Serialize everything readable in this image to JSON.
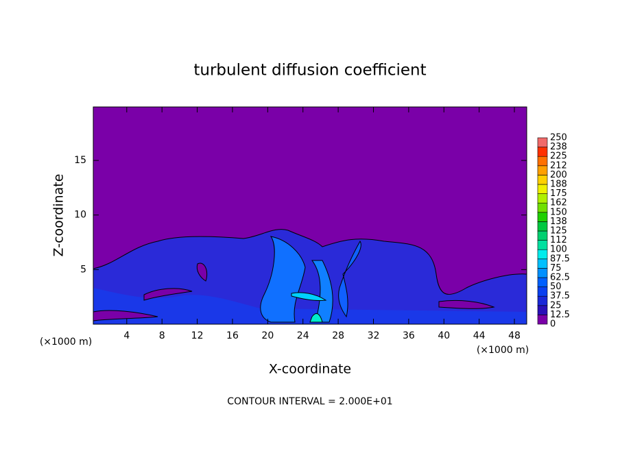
{
  "chart_data": {
    "type": "contour",
    "title": "turbulent diffusion coefficient",
    "x_label": "X-coordinate",
    "y_label": "Z-coordinate",
    "x_unit": "(×1000 m)",
    "footer": "CONTOUR INTERVAL = 2.000E+01",
    "xlim": [
      0.2,
      49.4
    ],
    "xticks": [
      4,
      8,
      12,
      16,
      20,
      24,
      28,
      32,
      36,
      40,
      44,
      48
    ],
    "ylim": [
      0,
      19.9
    ],
    "yticks": [
      5,
      10,
      15
    ],
    "colorbar": {
      "ticks": [
        0,
        12.5,
        25,
        37.5,
        50,
        62.5,
        75,
        87.5,
        100,
        {
          "value": 112.5,
          "label": "112"
        },
        125,
        {
          "value": 137.5,
          "label": "138"
        },
        150,
        {
          "value": 162.5,
          "label": "162"
        },
        175,
        {
          "value": 187.5,
          "label": "188"
        },
        200,
        {
          "value": 212.5,
          "label": "212"
        },
        225,
        {
          "value": 237.5,
          "label": "238"
        },
        250
      ],
      "colors": [
        "#7a00a8",
        "#2a10b8",
        "#1a28d8",
        "#0a40f0",
        "#0060ff",
        "#0090ff",
        "#00c0ff",
        "#00ecec",
        "#00e0a0",
        "#00d070",
        "#00c840",
        "#20d000",
        "#70e000",
        "#b0f000",
        "#f0f000",
        "#ffd000",
        "#ffa000",
        "#ff7000",
        "#ff3000",
        "#f06a6a"
      ]
    }
  }
}
